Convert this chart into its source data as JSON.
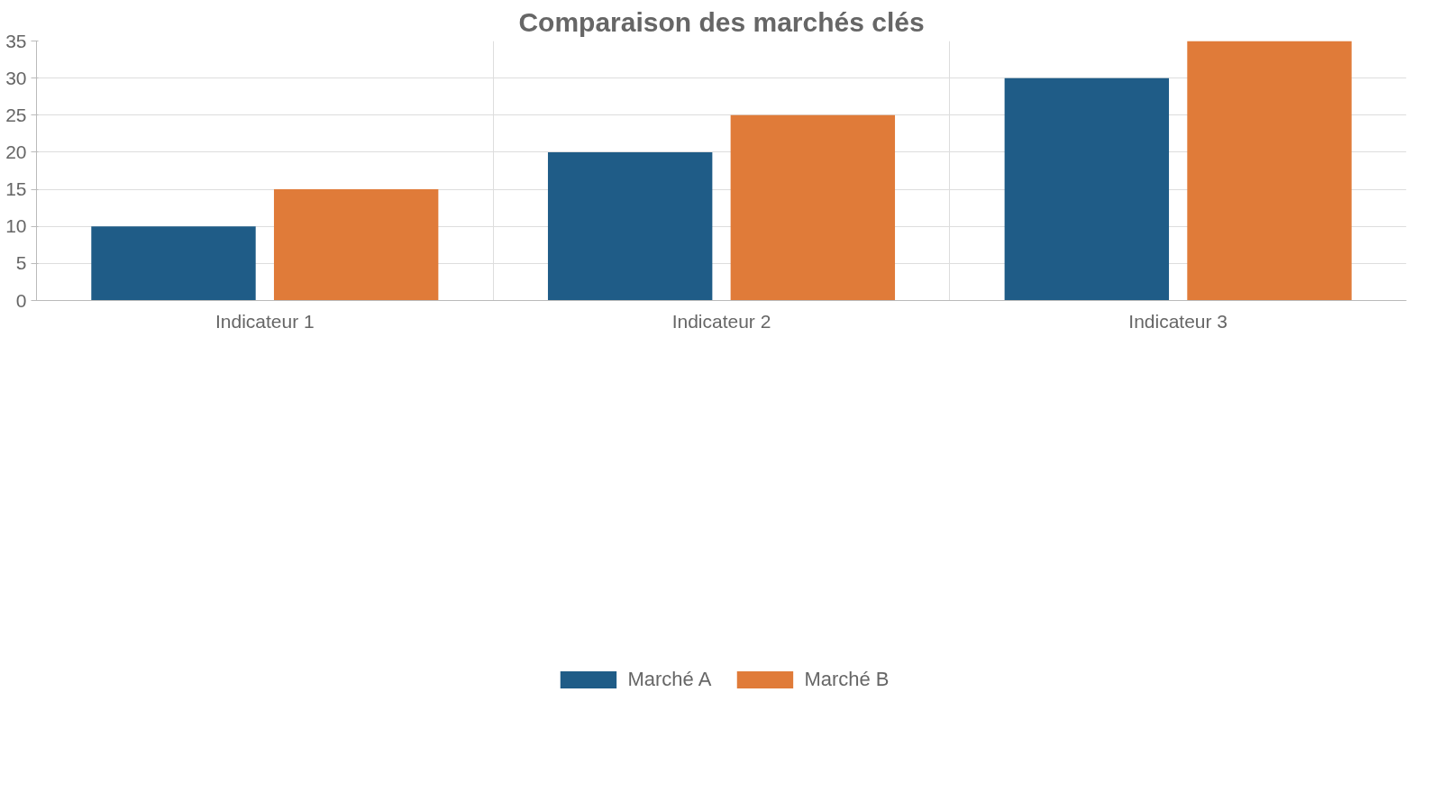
{
  "chart_data": {
    "type": "bar",
    "title": "Comparaison des marchés clés",
    "categories": [
      "Indicateur 1",
      "Indicateur 2",
      "Indicateur 3"
    ],
    "series": [
      {
        "name": "Marché A",
        "color": "#1f5c87",
        "values": [
          10,
          20,
          30
        ]
      },
      {
        "name": "Marché B",
        "color": "#e07b39",
        "values": [
          15,
          25,
          35
        ]
      }
    ],
    "ylim": [
      0,
      35
    ],
    "yticks": [
      0,
      5,
      10,
      15,
      20,
      25,
      30,
      35
    ],
    "grid": true,
    "legend": "bottom"
  }
}
